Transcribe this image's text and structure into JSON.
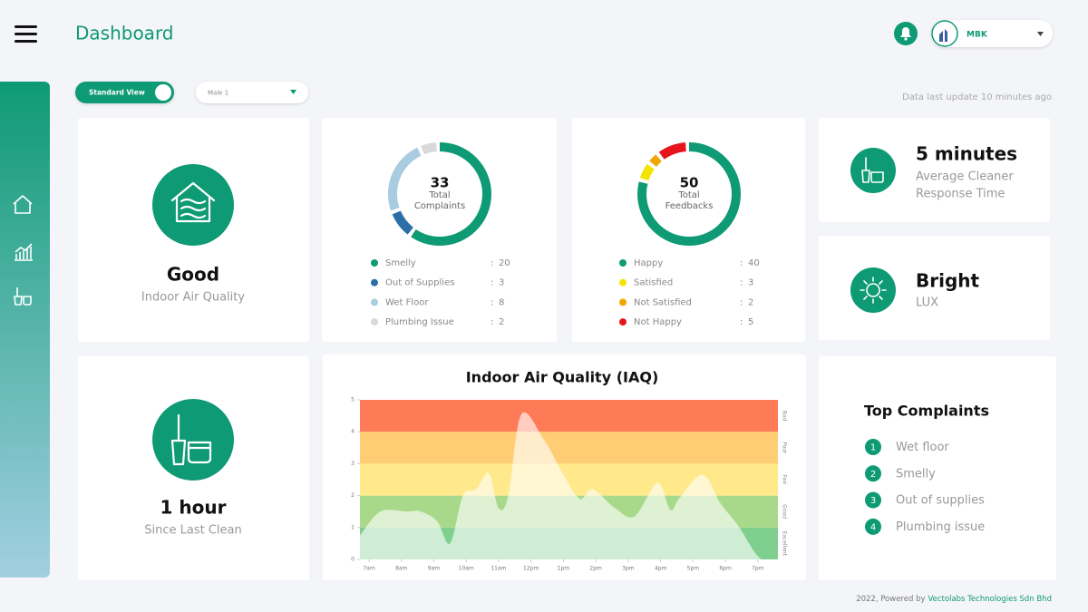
{
  "header": {
    "title": "Dashboard",
    "user": "MBK"
  },
  "toolbar": {
    "view_toggle": "Standard View",
    "location": "Male 1",
    "last_update": "Data last update 10 minutes ago"
  },
  "air_quality": {
    "status": "Good",
    "label": "Indoor Air Quality"
  },
  "complaints": {
    "total": 33,
    "total_label_lines": [
      "Total",
      "Complaints"
    ],
    "separator": ":",
    "items": [
      {
        "name": "Smelly",
        "color": "#0e9a74",
        "value": 20
      },
      {
        "name": "Out of Supplies",
        "color": "#2b6ea8",
        "value": 3
      },
      {
        "name": "Wet Floor",
        "color": "#a9cce0",
        "value": 8
      },
      {
        "name": "Plumbing Issue",
        "color": "#d9d9d9",
        "value": 2
      }
    ]
  },
  "feedbacks": {
    "total": 50,
    "total_label_lines": [
      "Total",
      "Feedbacks"
    ],
    "separator": ":",
    "items": [
      {
        "name": "Happy",
        "color": "#0e9a74",
        "value": 40
      },
      {
        "name": "Satisfied",
        "color": "#f5e400",
        "value": 3
      },
      {
        "name": "Not Satisfied",
        "color": "#f0a500",
        "value": 2
      },
      {
        "name": "Not Happy",
        "color": "#e8141b",
        "value": 5
      }
    ]
  },
  "response": {
    "value": "5 minutes",
    "label_lines": [
      "Average Cleaner",
      "Response Time"
    ]
  },
  "lux": {
    "value": "Bright",
    "label": "LUX"
  },
  "last_clean": {
    "value": "1 hour",
    "label": "Since Last Clean"
  },
  "chart_data": {
    "type": "area",
    "title": "Indoor Air Quality (IAQ)",
    "x": [
      6.72,
      7.35,
      8.15,
      8.6,
      9.1,
      9.5,
      9.9,
      10.3,
      10.7,
      11.0,
      11.3,
      11.7,
      12.4,
      12.95,
      13.5,
      13.9,
      14.6,
      15.2,
      15.9,
      16.3,
      16.6,
      17.3,
      17.85,
      18.4,
      18.85,
      19.1
    ],
    "values": [
      0.75,
      1.5,
      1.5,
      1.5,
      1.2,
      0.5,
      2.0,
      2.2,
      2.7,
      1.6,
      2.0,
      4.55,
      3.75,
      2.75,
      1.9,
      2.2,
      1.6,
      1.35,
      2.4,
      1.55,
      1.95,
      2.65,
      1.75,
      1.05,
      0.3,
      0
    ],
    "color": "#ffffff",
    "xlim": [
      6.72,
      19.62
    ],
    "xticks": [
      {
        "value": 7,
        "label": "7am"
      },
      {
        "value": 8,
        "label": "8am"
      },
      {
        "value": 9,
        "label": "9am"
      },
      {
        "value": 10,
        "label": "10am"
      },
      {
        "value": 11,
        "label": "11am"
      },
      {
        "value": 12,
        "label": "12pm"
      },
      {
        "value": 13,
        "label": "1pm"
      },
      {
        "value": 14,
        "label": "2pm"
      },
      {
        "value": 15,
        "label": "3pm"
      },
      {
        "value": 16,
        "label": "4pm"
      },
      {
        "value": 17,
        "label": "5pm"
      },
      {
        "value": 18,
        "label": "6pm"
      },
      {
        "value": 19,
        "label": "7pm"
      }
    ],
    "ylim": [
      0,
      5
    ],
    "yticks": [
      0,
      1,
      2,
      3,
      4,
      5
    ],
    "bands": [
      {
        "label": "Excellent",
        "from": 0,
        "to": 1,
        "color": "#7fd08f"
      },
      {
        "label": "Good",
        "from": 1,
        "to": 2,
        "color": "#a8d98a"
      },
      {
        "label": "Fair",
        "from": 2,
        "to": 3,
        "color": "#ffe98a"
      },
      {
        "label": "Poor",
        "from": 3,
        "to": 4,
        "color": "#ffcd74"
      },
      {
        "label": "Bad",
        "from": 4,
        "to": 5,
        "color": "#ff7a57"
      }
    ]
  },
  "top_complaints": {
    "title": "Top Complaints",
    "items": [
      {
        "rank": 1,
        "name": "Wet floor"
      },
      {
        "rank": 2,
        "name": "Smelly"
      },
      {
        "rank": 3,
        "name": "Out of supplies"
      },
      {
        "rank": 4,
        "name": "Plumbing issue"
      }
    ]
  },
  "footer": {
    "prefix": "2022, Powered by",
    "company": "Vectolabs Technologies Sdn Bhd"
  }
}
